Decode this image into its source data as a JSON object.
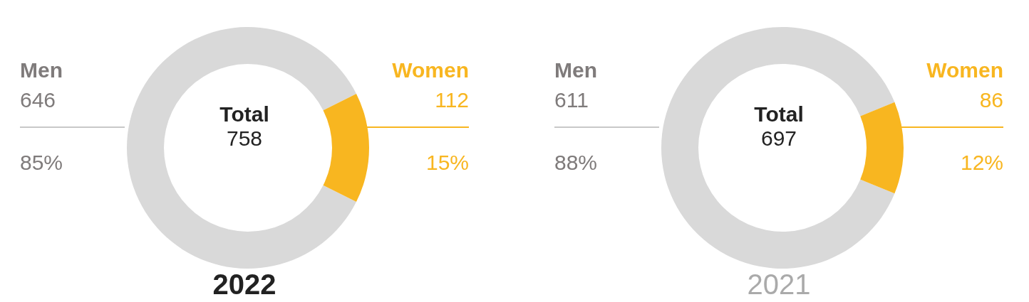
{
  "chart_data": [
    {
      "type": "donut",
      "title": "2022",
      "categories": [
        "Men",
        "Women"
      ],
      "values": [
        646,
        112
      ],
      "colors": [
        "#d9d9d9",
        "#f8b620"
      ],
      "data_labels": true,
      "annotations": [
        "Total",
        "758",
        "85%",
        "15%"
      ]
    },
    {
      "type": "donut",
      "title": "2021",
      "categories": [
        "Men",
        "Women"
      ],
      "values": [
        611,
        86
      ],
      "colors": [
        "#d9d9d9",
        "#f8b620"
      ],
      "data_labels": true,
      "annotations": [
        "Total",
        "697",
        "88%",
        "12%"
      ]
    }
  ]
}
